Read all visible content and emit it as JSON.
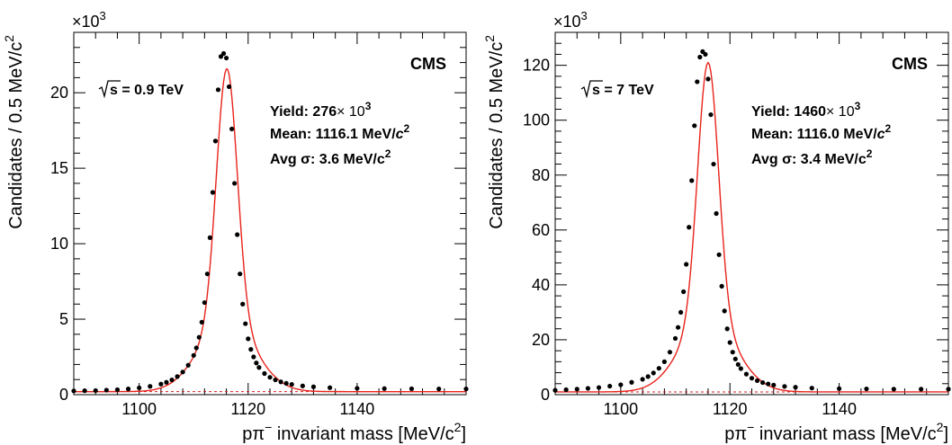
{
  "chart_data": [
    {
      "type": "scatter",
      "exponent_label": "×10",
      "exponent_power": "3",
      "xlabel_main": "pπ",
      "xlabel_sup": "−",
      "xlabel_rest": " invariant mass [MeV/c",
      "xlabel_sq": "2",
      "xlabel_end": "]",
      "ylabel_main": "Candidates / 0.5 MeV/c",
      "ylabel_sup": "2",
      "xlim": [
        1088,
        1160
      ],
      "ylim": [
        0,
        24
      ],
      "xticks": [
        1100,
        1120,
        1140
      ],
      "yticks": [
        0,
        5,
        10,
        15,
        20
      ],
      "experiment": "CMS",
      "energy_label": "s = 0.9 TeV",
      "yield_text": "Yield: 276",
      "yield_exp": "× 10",
      "yield_pow": "3",
      "mean_text": "Mean: 1116.1 MeV/",
      "mean_c": "c",
      "mean_pow": "2",
      "sigma_text": "Avg σ: 3.6 MeV/c",
      "sigma_pow": "2",
      "fit_peak": 21.6,
      "fit_mean": 1116.1,
      "fit_background": 0.2,
      "data_x": [
        1088,
        1090,
        1092,
        1094,
        1096,
        1098,
        1100,
        1102,
        1104,
        1105,
        1106,
        1107,
        1108,
        1109,
        1110,
        1110.5,
        1111,
        1111.5,
        1112,
        1112.5,
        1113,
        1113.5,
        1114,
        1114.5,
        1115,
        1115.5,
        1116,
        1116.5,
        1117,
        1117.5,
        1118,
        1118.5,
        1119,
        1119.5,
        1120,
        1120.5,
        1121,
        1121.5,
        1122,
        1123,
        1124,
        1125,
        1126,
        1127,
        1128,
        1130,
        1132,
        1135,
        1140,
        1145,
        1150,
        1155,
        1160
      ],
      "data_y": [
        0.25,
        0.26,
        0.27,
        0.3,
        0.33,
        0.38,
        0.45,
        0.55,
        0.7,
        0.82,
        0.98,
        1.2,
        1.5,
        1.95,
        2.6,
        3.1,
        3.8,
        4.8,
        6.1,
        8.0,
        10.4,
        13.4,
        16.8,
        20.2,
        22.4,
        22.6,
        22.3,
        20.4,
        17.6,
        14.0,
        10.6,
        8.0,
        6.0,
        4.7,
        3.7,
        3.0,
        2.5,
        2.1,
        1.8,
        1.4,
        1.15,
        0.98,
        0.85,
        0.75,
        0.68,
        0.58,
        0.52,
        0.46,
        0.42,
        0.4,
        0.39,
        0.38,
        0.38
      ]
    },
    {
      "type": "scatter",
      "exponent_label": "×10",
      "exponent_power": "3",
      "xlabel_main": "pπ",
      "xlabel_sup": "−",
      "xlabel_rest": " invariant mass [MeV/c",
      "xlabel_sq": "2",
      "xlabel_end": "]",
      "ylabel_main": "Candidates / 0.5 MeV/c",
      "ylabel_sup": "2",
      "xlim": [
        1088,
        1160
      ],
      "ylim": [
        0,
        132
      ],
      "xticks": [
        1100,
        1120,
        1140
      ],
      "yticks": [
        0,
        20,
        40,
        60,
        80,
        100,
        120
      ],
      "experiment": "CMS",
      "energy_label": "s = 7 TeV",
      "yield_text": "Yield: 1460",
      "yield_exp": "× 10",
      "yield_pow": "3",
      "mean_text": "Mean: 1116.0 MeV/",
      "mean_c": "c",
      "mean_pow": "2",
      "sigma_text": "Avg σ: 3.4 MeV/c",
      "sigma_pow": "2",
      "fit_peak": 121,
      "fit_mean": 1116.0,
      "fit_background": 1.0,
      "data_x": [
        1088,
        1090,
        1092,
        1094,
        1096,
        1098,
        1100,
        1102,
        1104,
        1105,
        1106,
        1107,
        1108,
        1109,
        1110,
        1110.5,
        1111,
        1111.5,
        1112,
        1112.5,
        1113,
        1113.5,
        1114,
        1114.5,
        1115,
        1115.5,
        1116,
        1116.5,
        1117,
        1117.5,
        1118,
        1118.5,
        1119,
        1119.5,
        1120,
        1120.5,
        1121,
        1121.5,
        1122,
        1123,
        1124,
        1125,
        1126,
        1127,
        1128,
        1130,
        1132,
        1135,
        1140,
        1145,
        1150,
        1155,
        1160
      ],
      "data_y": [
        1.6,
        1.8,
        2.0,
        2.3,
        2.6,
        3.1,
        3.6,
        4.5,
        5.6,
        6.6,
        7.9,
        9.6,
        12.0,
        15.5,
        20.5,
        24.5,
        30.0,
        37.5,
        47.5,
        61.0,
        78.0,
        98.0,
        114.0,
        123.0,
        125.0,
        124.0,
        115.0,
        102.0,
        84.0,
        66.0,
        51.0,
        39.5,
        30.5,
        24.0,
        19.0,
        15.5,
        13.0,
        11.0,
        9.5,
        7.5,
        6.0,
        5.1,
        4.4,
        3.9,
        3.5,
        3.0,
        2.7,
        2.4,
        2.2,
        2.1,
        2.0,
        2.0,
        2.0
      ]
    }
  ]
}
